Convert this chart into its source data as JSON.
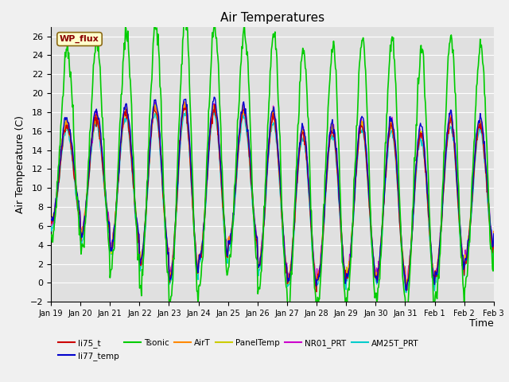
{
  "title": "Air Temperatures",
  "xlabel": "Time",
  "ylabel": "Air Temperature (C)",
  "ylim": [
    -2,
    27
  ],
  "yticks": [
    -2,
    0,
    2,
    4,
    6,
    8,
    10,
    12,
    14,
    16,
    18,
    20,
    22,
    24,
    26
  ],
  "series": {
    "li75_t": {
      "color": "#cc0000",
      "lw": 1.0
    },
    "li77_temp": {
      "color": "#0000cc",
      "lw": 1.0
    },
    "Tsonic": {
      "color": "#00cc00",
      "lw": 1.2
    },
    "AirT": {
      "color": "#ff8800",
      "lw": 1.0
    },
    "PanelTemp": {
      "color": "#cccc00",
      "lw": 1.0
    },
    "NR01_PRT": {
      "color": "#cc00cc",
      "lw": 1.0
    },
    "AM25T_PRT": {
      "color": "#00cccc",
      "lw": 1.0
    }
  },
  "fig_bg": "#f0f0f0",
  "ax_bg": "#e0e0e0",
  "grid_color": "#ffffff",
  "annotation_text": "WP_flux",
  "title_fontsize": 11,
  "axis_label_fontsize": 9,
  "tick_fontsize": 8
}
